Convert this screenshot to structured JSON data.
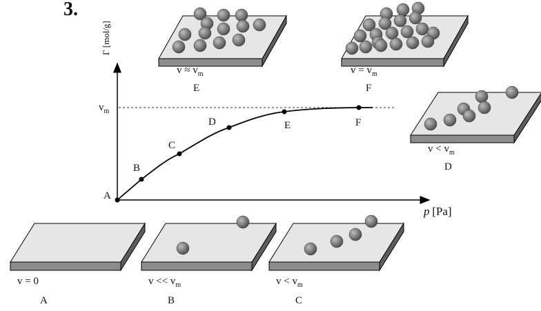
{
  "heading": "3.",
  "axes": {
    "y_label": "Γ [mol/g]",
    "x_label_symbol": "p",
    "x_label_unit": "[Pa]",
    "vm": {
      "main": "v",
      "sub": "m"
    }
  },
  "points": [
    "A",
    "B",
    "C",
    "D",
    "E",
    "F"
  ],
  "plates": [
    {
      "caption": {
        "main": "v = 0"
      },
      "label": "A"
    },
    {
      "caption": {
        "main": "v << v",
        "sub": "m"
      },
      "label": "B"
    },
    {
      "caption": {
        "main": "v < v",
        "sub": "m"
      },
      "label": "C"
    },
    {
      "caption": {
        "main": "v < v",
        "sub": "m"
      },
      "label": "D"
    },
    {
      "caption": {
        "main": "v ≈ v",
        "sub": "m"
      },
      "label": "E"
    },
    {
      "caption": {
        "main": "v = v",
        "sub": "m"
      },
      "label": "F"
    }
  ]
}
